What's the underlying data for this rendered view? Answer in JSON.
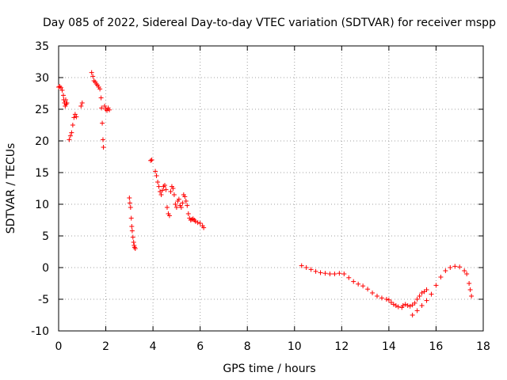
{
  "chart_data": {
    "type": "scatter",
    "title": "Day 085 of 2022, Sidereal Day-to-day VTEC variation (SDTVAR) for receiver mspp",
    "xlabel": "GPS time / hours",
    "ylabel": "SDTVAR / TECUs",
    "xlim": [
      0,
      18
    ],
    "ylim": [
      -10,
      35
    ],
    "xticks": [
      0,
      2,
      4,
      6,
      8,
      10,
      12,
      14,
      16,
      18
    ],
    "yticks": [
      -10,
      -5,
      0,
      5,
      10,
      15,
      20,
      25,
      30,
      35
    ],
    "grid": true,
    "marker": "+",
    "color": "#ff0000",
    "series": [
      {
        "name": "SDTVAR",
        "x": [
          0.0,
          0.05,
          0.1,
          0.15,
          0.2,
          0.22,
          0.25,
          0.28,
          0.3,
          0.32,
          0.35,
          0.45,
          0.5,
          0.55,
          0.6,
          0.65,
          0.7,
          0.75,
          0.95,
          1.0,
          1.4,
          1.45,
          1.5,
          1.55,
          1.6,
          1.65,
          1.7,
          1.75,
          1.8,
          1.82,
          1.85,
          1.88,
          1.9,
          1.95,
          2.0,
          2.05,
          2.1,
          2.15,
          3.0,
          3.02,
          3.05,
          3.08,
          3.1,
          3.12,
          3.15,
          3.18,
          3.2,
          3.22,
          3.25,
          3.9,
          3.95,
          4.1,
          4.15,
          4.2,
          4.25,
          4.3,
          4.35,
          4.4,
          4.45,
          4.5,
          4.55,
          4.6,
          4.65,
          4.7,
          4.75,
          4.8,
          4.85,
          4.9,
          4.95,
          5.0,
          5.05,
          5.1,
          5.15,
          5.2,
          5.25,
          5.3,
          5.35,
          5.4,
          5.45,
          5.5,
          5.55,
          5.6,
          5.65,
          5.7,
          5.75,
          5.8,
          5.9,
          6.0,
          6.1,
          6.15,
          10.3,
          10.5,
          10.7,
          10.9,
          11.1,
          11.3,
          11.5,
          11.7,
          11.9,
          12.1,
          12.3,
          12.5,
          12.7,
          12.9,
          13.1,
          13.3,
          13.5,
          13.7,
          13.9,
          14.0,
          14.1,
          14.2,
          14.3,
          14.4,
          14.55,
          14.6,
          14.7,
          14.8,
          14.9,
          15.0,
          15.1,
          15.2,
          15.3,
          15.4,
          15.5,
          15.6,
          15.0,
          15.2,
          15.4,
          15.6,
          15.8,
          16.0,
          16.2,
          16.4,
          16.6,
          16.8,
          17.0,
          17.2,
          17.3,
          17.4,
          17.45,
          17.5
        ],
        "y": [
          28.5,
          28.6,
          28.4,
          28.0,
          27.2,
          26.5,
          26.0,
          25.5,
          26.5,
          25.8,
          26.0,
          20.2,
          20.8,
          21.3,
          22.5,
          23.7,
          24.2,
          23.8,
          25.5,
          26.0,
          30.8,
          30.2,
          29.5,
          29.3,
          29.0,
          28.8,
          28.5,
          28.2,
          26.8,
          25.2,
          22.8,
          20.2,
          19.0,
          25.5,
          25.0,
          24.8,
          25.2,
          24.9,
          11.0,
          10.2,
          9.5,
          7.8,
          6.5,
          5.8,
          4.8,
          4.0,
          3.5,
          3.2,
          3.0,
          16.9,
          17.0,
          15.2,
          14.5,
          13.5,
          12.8,
          12.0,
          11.5,
          12.2,
          12.8,
          13.0,
          12.3,
          9.5,
          8.5,
          8.2,
          12.0,
          12.8,
          12.5,
          11.5,
          10.0,
          9.5,
          10.5,
          10.8,
          9.8,
          9.5,
          10.2,
          11.5,
          11.2,
          10.5,
          9.8,
          8.5,
          7.8,
          7.5,
          7.6,
          7.7,
          7.5,
          7.3,
          7.1,
          7.0,
          6.6,
          6.3,
          0.3,
          0.0,
          -0.3,
          -0.6,
          -0.8,
          -0.9,
          -1.0,
          -1.0,
          -0.9,
          -1.0,
          -1.6,
          -2.2,
          -2.6,
          -2.9,
          -3.4,
          -4.0,
          -4.5,
          -4.8,
          -5.0,
          -5.1,
          -5.5,
          -5.8,
          -6.0,
          -6.2,
          -6.3,
          -6.0,
          -5.8,
          -6.0,
          -6.1,
          -5.9,
          -5.6,
          -5.0,
          -4.5,
          -4.0,
          -3.8,
          -3.5,
          -7.5,
          -6.8,
          -6.0,
          -5.2,
          -4.2,
          -2.8,
          -1.5,
          -0.5,
          0.0,
          0.2,
          0.1,
          -0.5,
          -1.0,
          -2.5,
          -3.5,
          -4.5
        ]
      }
    ]
  }
}
